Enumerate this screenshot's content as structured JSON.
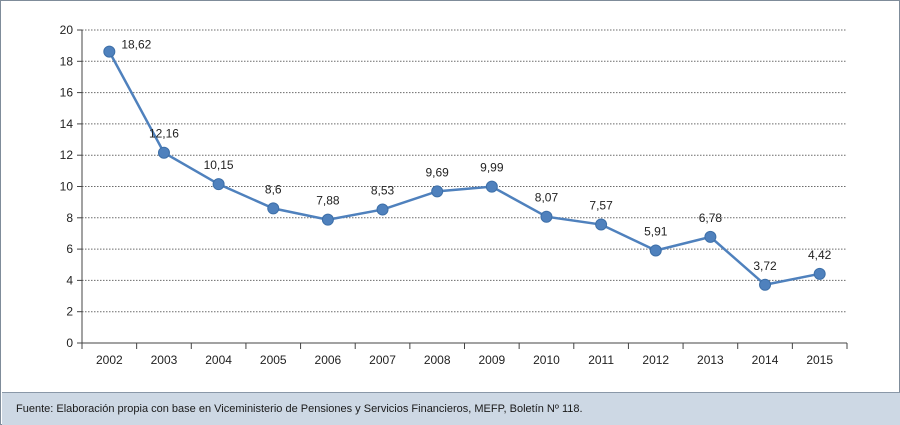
{
  "chart_data": {
    "type": "line",
    "title": "",
    "xlabel": "",
    "ylabel": "",
    "categories": [
      "2002",
      "2003",
      "2004",
      "2005",
      "2006",
      "2007",
      "2008",
      "2009",
      "2010",
      "2011",
      "2012",
      "2013",
      "2014",
      "2015"
    ],
    "series": [
      {
        "values": [
          18.62,
          12.16,
          10.15,
          8.6,
          7.88,
          8.53,
          9.69,
          9.99,
          8.07,
          7.57,
          5.91,
          6.78,
          3.72,
          4.42
        ],
        "labels": [
          "18,62",
          "12,16",
          "10,15",
          "8,6",
          "7,88",
          "8,53",
          "9,69",
          "9,99",
          "8,07",
          "7,57",
          "5,91",
          "6,78",
          "3,72",
          "4,42"
        ]
      }
    ],
    "ylim": [
      0,
      20
    ],
    "yticks": [
      "0",
      "2",
      "4",
      "6",
      "8",
      "10",
      "12",
      "14",
      "16",
      "18",
      "20"
    ],
    "grid": "horizontal dotted",
    "legend": "none",
    "line_color": "#4f81bd",
    "marker_color": "#4f81bd"
  },
  "source": {
    "text": "Fuente: Elaboración propia con base en Viceministerio de Pensiones y Servicios Financieros, MEFP, Boletín Nº 118."
  }
}
